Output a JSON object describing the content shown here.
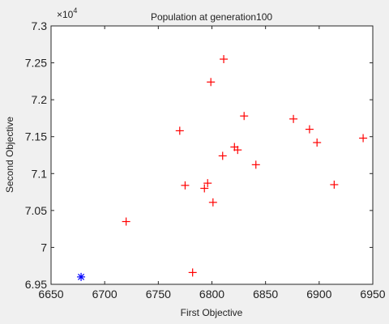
{
  "chart_data": {
    "type": "scatter",
    "title": "Population at generation100",
    "xlabel": "First Objective",
    "ylabel": "Second Objective",
    "y_exponent_label": "×10",
    "y_exponent_power": "4",
    "xlim": [
      6650,
      6950
    ],
    "ylim": [
      69500,
      73000
    ],
    "x_ticks": [
      6650,
      6700,
      6750,
      6800,
      6850,
      6900,
      6950
    ],
    "x_tick_labels": [
      "6650",
      "6700",
      "6750",
      "6800",
      "6850",
      "6900",
      "6950"
    ],
    "y_ticks": [
      69500,
      70000,
      70500,
      71000,
      71500,
      72000,
      72500,
      73000
    ],
    "y_tick_labels": [
      "6.95",
      "7",
      "7.05",
      "7.1",
      "7.15",
      "7.2",
      "7.25",
      "7.3"
    ],
    "grid": false,
    "series": [
      {
        "marker": "+",
        "color": "#ff0000",
        "points": [
          {
            "x": 6720,
            "y": 70350
          },
          {
            "x": 6770,
            "y": 71580
          },
          {
            "x": 6775,
            "y": 70840
          },
          {
            "x": 6782,
            "y": 69660
          },
          {
            "x": 6793,
            "y": 70800
          },
          {
            "x": 6796,
            "y": 70870
          },
          {
            "x": 6799,
            "y": 72240
          },
          {
            "x": 6801,
            "y": 70610
          },
          {
            "x": 6810,
            "y": 71240
          },
          {
            "x": 6811,
            "y": 72550
          },
          {
            "x": 6821,
            "y": 71360
          },
          {
            "x": 6824,
            "y": 71320
          },
          {
            "x": 6830,
            "y": 71780
          },
          {
            "x": 6841,
            "y": 71120
          },
          {
            "x": 6876,
            "y": 71740
          },
          {
            "x": 6891,
            "y": 71600
          },
          {
            "x": 6898,
            "y": 71420
          },
          {
            "x": 6914,
            "y": 70850
          },
          {
            "x": 6941,
            "y": 71480
          }
        ]
      },
      {
        "marker": "*",
        "color": "#0000ff",
        "points": [
          {
            "x": 6678,
            "y": 69600
          }
        ]
      }
    ]
  }
}
